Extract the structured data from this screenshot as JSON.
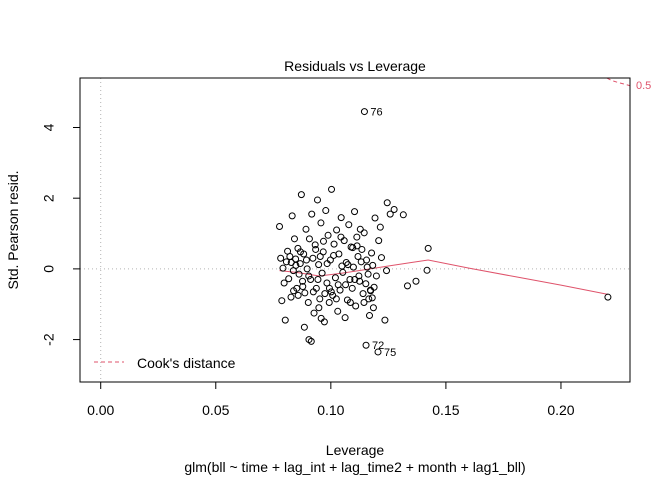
{
  "chart_data": {
    "type": "scatter",
    "title": "Residuals vs Leverage",
    "xlabel": "Leverage",
    "subtitle": "glm(bll ~ time + lag_int + lag_time2 + month + lag1_bll)",
    "ylabel": "Std. Pearson resid.",
    "xlim": [
      -0.009,
      0.23
    ],
    "ylim": [
      -3.2,
      5.4
    ],
    "x_ticks": [
      0.0,
      0.05,
      0.1,
      0.15,
      0.2
    ],
    "x_tick_labels": [
      "0.00",
      "0.05",
      "0.10",
      "0.15",
      "0.20"
    ],
    "y_ticks": [
      -2,
      0,
      2,
      4
    ],
    "y_tick_labels": [
      "-2",
      "0",
      "2",
      "4"
    ],
    "grid": false,
    "reference_lines": [
      {
        "axis": "y",
        "value": 0,
        "style": "dotted"
      },
      {
        "axis": "x",
        "value": 0,
        "style": "dotted"
      }
    ],
    "points": [
      {
        "x": 0.1146,
        "y": 4.45,
        "label": "76"
      },
      {
        "x": 0.1153,
        "y": -2.16,
        "label": "72"
      },
      {
        "x": 0.1205,
        "y": -2.35,
        "label": "75"
      },
      {
        "x": 0.2204,
        "y": -0.8
      },
      {
        "x": 0.1423,
        "y": 0.58
      },
      {
        "x": 0.1418,
        "y": -0.04
      },
      {
        "x": 0.137,
        "y": -0.35
      },
      {
        "x": 0.1333,
        "y": -0.48
      },
      {
        "x": 0.1315,
        "y": 1.53
      },
      {
        "x": 0.1275,
        "y": 1.68
      },
      {
        "x": 0.1258,
        "y": 1.55
      },
      {
        "x": 0.1245,
        "y": 1.87
      },
      {
        "x": 0.1235,
        "y": -1.45
      },
      {
        "x": 0.1242,
        "y": -0.05
      },
      {
        "x": 0.122,
        "y": 0.32
      },
      {
        "x": 0.1215,
        "y": 1.18
      },
      {
        "x": 0.1208,
        "y": 0.8
      },
      {
        "x": 0.1192,
        "y": 1.44
      },
      {
        "x": 0.1188,
        "y": -0.52
      },
      {
        "x": 0.1185,
        "y": -1.1
      },
      {
        "x": 0.118,
        "y": -0.82
      },
      {
        "x": 0.1173,
        "y": -0.62
      },
      {
        "x": 0.1168,
        "y": -1.32
      },
      {
        "x": 0.1165,
        "y": -0.85
      },
      {
        "x": 0.1162,
        "y": -0.15
      },
      {
        "x": 0.1155,
        "y": 0.25
      },
      {
        "x": 0.1152,
        "y": -0.42
      },
      {
        "x": 0.1145,
        "y": 1.02
      },
      {
        "x": 0.114,
        "y": -0.7
      },
      {
        "x": 0.1135,
        "y": 0.55
      },
      {
        "x": 0.1128,
        "y": 1.12
      },
      {
        "x": 0.1122,
        "y": -0.2
      },
      {
        "x": 0.1118,
        "y": 0.35
      },
      {
        "x": 0.1113,
        "y": 0.9
      },
      {
        "x": 0.1108,
        "y": -1.05
      },
      {
        "x": 0.1103,
        "y": 1.62
      },
      {
        "x": 0.1098,
        "y": 0.05
      },
      {
        "x": 0.1093,
        "y": -0.55
      },
      {
        "x": 0.1088,
        "y": 0.62
      },
      {
        "x": 0.1083,
        "y": -0.3
      },
      {
        "x": 0.1078,
        "y": 1.25
      },
      {
        "x": 0.1072,
        "y": -0.88
      },
      {
        "x": 0.1067,
        "y": 0.18
      },
      {
        "x": 0.1062,
        "y": -1.38
      },
      {
        "x": 0.1058,
        "y": 0.8
      },
      {
        "x": 0.1052,
        "y": -0.1
      },
      {
        "x": 0.1045,
        "y": 1.45
      },
      {
        "x": 0.104,
        "y": -0.6
      },
      {
        "x": 0.1035,
        "y": 0.42
      },
      {
        "x": 0.103,
        "y": -1.2
      },
      {
        "x": 0.1025,
        "y": 1.1
      },
      {
        "x": 0.102,
        "y": -0.25
      },
      {
        "x": 0.1014,
        "y": 0.7
      },
      {
        "x": 0.1008,
        "y": -0.75
      },
      {
        "x": 0.1003,
        "y": 2.25
      },
      {
        "x": 0.0998,
        "y": 0.25
      },
      {
        "x": 0.0993,
        "y": -0.95
      },
      {
        "x": 0.0988,
        "y": 0.95
      },
      {
        "x": 0.0983,
        "y": -0.4
      },
      {
        "x": 0.0978,
        "y": 1.65
      },
      {
        "x": 0.0972,
        "y": -1.5
      },
      {
        "x": 0.0967,
        "y": 0.48
      },
      {
        "x": 0.0962,
        "y": -0.12
      },
      {
        "x": 0.0957,
        "y": 1.3
      },
      {
        "x": 0.0952,
        "y": -0.85
      },
      {
        "x": 0.0947,
        "y": 0.12
      },
      {
        "x": 0.0942,
        "y": 1.95
      },
      {
        "x": 0.0937,
        "y": -0.55
      },
      {
        "x": 0.0932,
        "y": 0.68
      },
      {
        "x": 0.0927,
        "y": -1.25
      },
      {
        "x": 0.0922,
        "y": 0.3
      },
      {
        "x": 0.0917,
        "y": 1.55
      },
      {
        "x": 0.0912,
        "y": -0.3
      },
      {
        "x": 0.0907,
        "y": 0.85
      },
      {
        "x": 0.0902,
        "y": -0.95
      },
      {
        "x": 0.0897,
        "y": 0.0
      },
      {
        "x": 0.0892,
        "y": 1.12
      },
      {
        "x": 0.0887,
        "y": -0.68
      },
      {
        "x": 0.0882,
        "y": 0.42
      },
      {
        "x": 0.0877,
        "y": -0.35
      },
      {
        "x": 0.0872,
        "y": 2.1
      },
      {
        "x": 0.0867,
        "y": 0.15
      },
      {
        "x": 0.0862,
        "y": -0.15
      },
      {
        "x": 0.0857,
        "y": 0.58
      },
      {
        "x": 0.0852,
        "y": -0.55
      },
      {
        "x": 0.0847,
        "y": 0.28
      },
      {
        "x": 0.0842,
        "y": 0.85
      },
      {
        "x": 0.0837,
        "y": -0.05
      },
      {
        "x": 0.0832,
        "y": 1.5
      },
      {
        "x": 0.0827,
        "y": -0.8
      },
      {
        "x": 0.0822,
        "y": 0.35
      },
      {
        "x": 0.0817,
        "y": -0.28
      },
      {
        "x": 0.0812,
        "y": 0.5
      },
      {
        "x": 0.0807,
        "y": 0.2
      },
      {
        "x": 0.0802,
        "y": -1.45
      },
      {
        "x": 0.0797,
        "y": -0.4
      },
      {
        "x": 0.0792,
        "y": 0.02
      },
      {
        "x": 0.0787,
        "y": -0.9
      },
      {
        "x": 0.0782,
        "y": 0.3
      },
      {
        "x": 0.0777,
        "y": 1.2
      },
      {
        "x": 0.0885,
        "y": -1.65
      },
      {
        "x": 0.0905,
        "y": -2.0
      },
      {
        "x": 0.0915,
        "y": -2.05
      },
      {
        "x": 0.0948,
        "y": -1.1
      },
      {
        "x": 0.0958,
        "y": -1.4
      },
      {
        "x": 0.0968,
        "y": 0.78
      },
      {
        "x": 0.1002,
        "y": -0.65
      },
      {
        "x": 0.1012,
        "y": 0.38
      },
      {
        "x": 0.1032,
        "y": -0.45
      },
      {
        "x": 0.1048,
        "y": 0.08
      },
      {
        "x": 0.1085,
        "y": -0.95
      },
      {
        "x": 0.1095,
        "y": 0.6
      },
      {
        "x": 0.1125,
        "y": -0.35
      },
      {
        "x": 0.1132,
        "y": 0.2
      },
      {
        "x": 0.1177,
        "y": 0.45
      },
      {
        "x": 0.1198,
        "y": -0.2
      },
      {
        "x": 0.0878,
        "y": -0.5
      },
      {
        "x": 0.0868,
        "y": 0.48
      },
      {
        "x": 0.0858,
        "y": -0.75
      },
      {
        "x": 0.0848,
        "y": 0.1
      },
      {
        "x": 0.0838,
        "y": -0.62
      },
      {
        "x": 0.0828,
        "y": 0.18
      },
      {
        "x": 0.0894,
        "y": 0.25
      },
      {
        "x": 0.0904,
        "y": -0.2
      },
      {
        "x": 0.0924,
        "y": -0.65
      },
      {
        "x": 0.0934,
        "y": 0.55
      },
      {
        "x": 0.0944,
        "y": -0.3
      },
      {
        "x": 0.0954,
        "y": 0.35
      },
      {
        "x": 0.0974,
        "y": -0.7
      },
      {
        "x": 0.0984,
        "y": 0.15
      },
      {
        "x": 0.0994,
        "y": -0.55
      },
      {
        "x": 0.1024,
        "y": -0.85
      },
      {
        "x": 0.1044,
        "y": 0.9
      },
      {
        "x": 0.1064,
        "y": -0.45
      },
      {
        "x": 0.1074,
        "y": 0.12
      },
      {
        "x": 0.1104,
        "y": -0.3
      },
      {
        "x": 0.1114,
        "y": 0.65
      },
      {
        "x": 0.1144,
        "y": -0.95
      },
      {
        "x": 0.1158,
        "y": 0.05
      },
      {
        "x": 0.1172,
        "y": -0.6
      },
      {
        "x": 0.1182,
        "y": 0.1
      }
    ],
    "smoother": {
      "color": "#DF536B",
      "x": [
        0.0777,
        0.085,
        0.095,
        0.105,
        0.115,
        0.125,
        0.135,
        0.1423,
        0.16,
        0.18,
        0.2,
        0.2204
      ],
      "y": [
        -0.05,
        -0.1,
        -0.2,
        -0.12,
        -0.02,
        0.08,
        0.18,
        0.25,
        0.02,
        -0.22,
        -0.46,
        -0.72
      ]
    },
    "cooks_distance": {
      "color": "#DF536B",
      "legend_label": "Cook's distance",
      "legend_position": "bottom-left",
      "contour_label": "0.5",
      "contour": {
        "x": [
          0.22,
          0.222,
          0.225,
          0.228,
          0.23
        ],
        "y": [
          5.4,
          5.33,
          5.27,
          5.22,
          5.18
        ]
      }
    }
  }
}
